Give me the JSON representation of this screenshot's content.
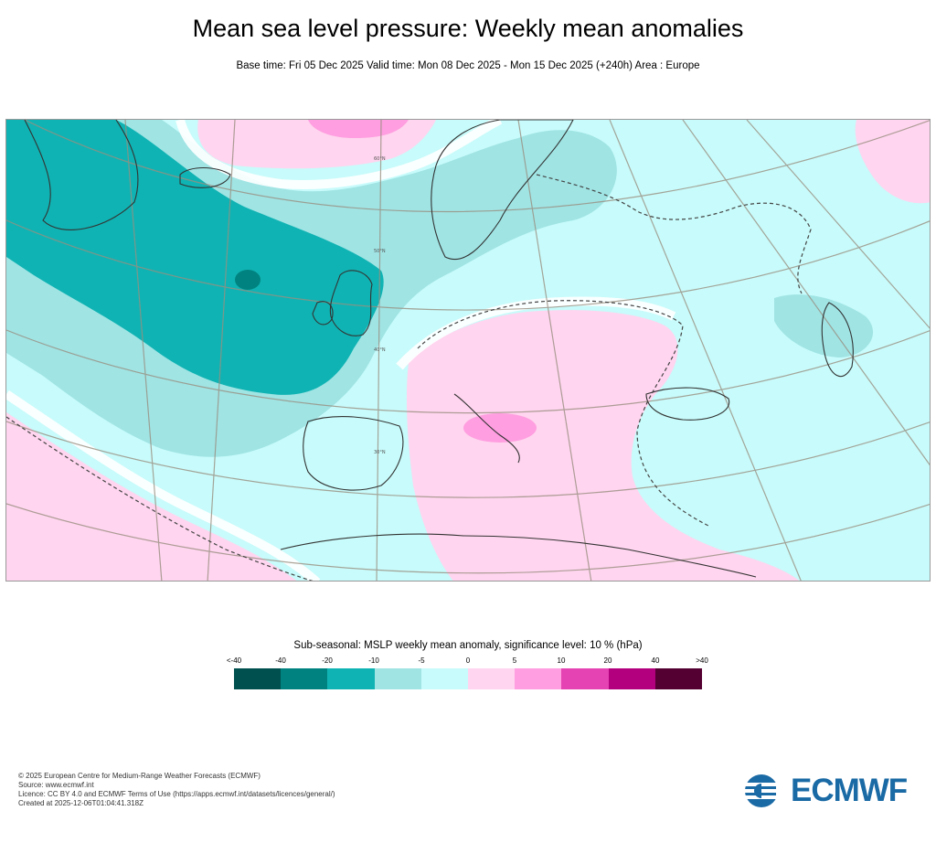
{
  "header": {
    "title": "Mean sea level pressure: Weekly mean anomalies",
    "subtitle": "Base time: Fri 05 Dec 2025 Valid time: Mon 08 Dec 2025 - Mon 15 Dec 2025 (+240h) Area : Europe"
  },
  "map": {
    "lat_labels": [
      "60°N",
      "50°N",
      "40°N",
      "30°N"
    ]
  },
  "legend": {
    "title": "Sub-seasonal: MSLP weekly mean anomaly, significance level: 10 % (hPa)",
    "ticks": [
      "<-40",
      "-40",
      "-20",
      "-10",
      "-5",
      "0",
      "5",
      "10",
      "20",
      "40",
      ">40"
    ],
    "colors": [
      "#00504f",
      "#008380",
      "#10b3b3",
      "#a0e4e4",
      "#c8fbfb",
      "#ffd5ef",
      "#ff9ee0",
      "#e543b3",
      "#b3007f",
      "#540032"
    ]
  },
  "footer": {
    "copyright": "© 2025 European Centre for Medium-Range Weather Forecasts (ECMWF)",
    "source": "Source: www.ecmwf.int",
    "licence": "Licence: CC BY 4.0 and ECMWF Terms of Use (https://apps.ecmwf.int/datasets/licences/general/)",
    "created": "Created at 2025-12-06T01:04:41.318Z"
  },
  "logo": {
    "text": "ECMWF",
    "color": "#1a6aa5"
  }
}
